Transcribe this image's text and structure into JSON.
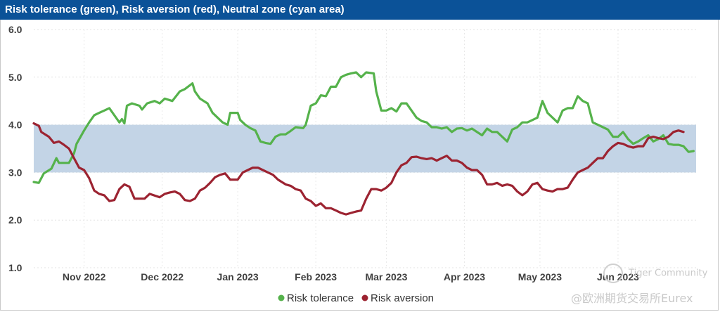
{
  "chart_data": {
    "type": "line",
    "title": "Risk tolerance (green), Risk aversion (red), Neutral zone (cyan area)",
    "ylim": [
      1.0,
      6.0
    ],
    "y_ticks": [
      "6.0",
      "5.0",
      "4.0",
      "3.0",
      "2.0",
      "1.0"
    ],
    "x_tick_labels": [
      "Nov 2022",
      "Dec 2022",
      "Jan 2023",
      "Feb 2023",
      "Mar 2023",
      "Apr 2023",
      "May 2023",
      "Jun 2023"
    ],
    "x_tick_index": [
      20,
      51,
      81,
      112,
      140,
      171,
      201,
      232
    ],
    "x_count": 264,
    "grid": true,
    "neutral_zone": {
      "name": "Neutral zone",
      "range": [
        3.0,
        4.0
      ],
      "color": "#c3d4e6"
    },
    "legend_position": "bottom-center",
    "series": [
      {
        "name": "Risk tolerance",
        "color": "#55b24b",
        "points": [
          [
            0,
            2.8
          ],
          [
            2,
            2.78
          ],
          [
            4,
            2.98
          ],
          [
            7,
            3.08
          ],
          [
            9,
            3.3
          ],
          [
            10,
            3.2
          ],
          [
            14,
            3.2
          ],
          [
            16,
            3.4
          ],
          [
            17,
            3.6
          ],
          [
            20,
            3.88
          ],
          [
            22,
            4.05
          ],
          [
            24,
            4.2
          ],
          [
            26,
            4.25
          ],
          [
            28,
            4.3
          ],
          [
            30,
            4.35
          ],
          [
            32,
            4.2
          ],
          [
            34,
            4.05
          ],
          [
            35,
            4.12
          ],
          [
            36,
            4.03
          ],
          [
            37,
            4.4
          ],
          [
            39,
            4.45
          ],
          [
            42,
            4.4
          ],
          [
            43,
            4.32
          ],
          [
            45,
            4.45
          ],
          [
            48,
            4.5
          ],
          [
            50,
            4.45
          ],
          [
            52,
            4.55
          ],
          [
            55,
            4.5
          ],
          [
            58,
            4.7
          ],
          [
            60,
            4.75
          ],
          [
            63,
            4.87
          ],
          [
            64,
            4.7
          ],
          [
            66,
            4.55
          ],
          [
            69,
            4.45
          ],
          [
            71,
            4.25
          ],
          [
            73,
            4.15
          ],
          [
            75,
            4.05
          ],
          [
            77,
            4.0
          ],
          [
            78,
            4.25
          ],
          [
            81,
            4.25
          ],
          [
            82,
            4.1
          ],
          [
            84,
            4.0
          ],
          [
            86,
            3.93
          ],
          [
            88,
            3.88
          ],
          [
            90,
            3.65
          ],
          [
            92,
            3.62
          ],
          [
            94,
            3.6
          ],
          [
            96,
            3.75
          ],
          [
            98,
            3.8
          ],
          [
            100,
            3.8
          ],
          [
            102,
            3.87
          ],
          [
            104,
            3.95
          ],
          [
            107,
            3.93
          ],
          [
            108,
            4.0
          ],
          [
            110,
            4.4
          ],
          [
            112,
            4.45
          ],
          [
            114,
            4.62
          ],
          [
            116,
            4.6
          ],
          [
            118,
            4.8
          ],
          [
            120,
            4.8
          ],
          [
            122,
            5.0
          ],
          [
            124,
            5.05
          ],
          [
            126,
            5.08
          ],
          [
            128,
            5.1
          ],
          [
            130,
            5.0
          ],
          [
            132,
            5.1
          ],
          [
            135,
            5.08
          ],
          [
            136,
            4.7
          ],
          [
            138,
            4.3
          ],
          [
            140,
            4.3
          ],
          [
            142,
            4.35
          ],
          [
            144,
            4.28
          ],
          [
            146,
            4.45
          ],
          [
            148,
            4.45
          ],
          [
            150,
            4.3
          ],
          [
            152,
            4.15
          ],
          [
            154,
            4.08
          ],
          [
            156,
            4.05
          ],
          [
            158,
            3.95
          ],
          [
            160,
            3.95
          ],
          [
            162,
            3.92
          ],
          [
            164,
            3.95
          ],
          [
            166,
            3.85
          ],
          [
            168,
            3.92
          ],
          [
            170,
            3.93
          ],
          [
            172,
            3.88
          ],
          [
            174,
            3.92
          ],
          [
            176,
            3.85
          ],
          [
            178,
            3.78
          ],
          [
            180,
            3.92
          ],
          [
            182,
            3.85
          ],
          [
            184,
            3.85
          ],
          [
            186,
            3.75
          ],
          [
            188,
            3.65
          ],
          [
            190,
            3.9
          ],
          [
            192,
            3.95
          ],
          [
            194,
            4.05
          ],
          [
            196,
            4.05
          ],
          [
            198,
            4.1
          ],
          [
            200,
            4.15
          ],
          [
            202,
            4.5
          ],
          [
            204,
            4.25
          ],
          [
            206,
            4.15
          ],
          [
            208,
            4.05
          ],
          [
            210,
            4.3
          ],
          [
            212,
            4.35
          ],
          [
            214,
            4.35
          ],
          [
            216,
            4.6
          ],
          [
            218,
            4.5
          ],
          [
            220,
            4.45
          ],
          [
            222,
            4.05
          ],
          [
            224,
            4.0
          ],
          [
            226,
            3.95
          ],
          [
            228,
            3.9
          ],
          [
            230,
            3.75
          ],
          [
            232,
            3.75
          ],
          [
            234,
            3.85
          ],
          [
            236,
            3.7
          ],
          [
            238,
            3.6
          ],
          [
            240,
            3.65
          ],
          [
            242,
            3.72
          ],
          [
            244,
            3.78
          ],
          [
            246,
            3.65
          ],
          [
            248,
            3.7
          ],
          [
            250,
            3.78
          ],
          [
            252,
            3.6
          ],
          [
            254,
            3.58
          ],
          [
            256,
            3.58
          ],
          [
            258,
            3.55
          ],
          [
            260,
            3.43
          ],
          [
            262,
            3.45
          ]
        ]
      },
      {
        "name": "Risk aversion",
        "color": "#9c2331",
        "points": [
          [
            0,
            4.03
          ],
          [
            2,
            3.98
          ],
          [
            3,
            3.85
          ],
          [
            6,
            3.75
          ],
          [
            8,
            3.62
          ],
          [
            10,
            3.65
          ],
          [
            12,
            3.58
          ],
          [
            14,
            3.5
          ],
          [
            16,
            3.3
          ],
          [
            18,
            3.1
          ],
          [
            20,
            3.05
          ],
          [
            22,
            2.88
          ],
          [
            24,
            2.62
          ],
          [
            26,
            2.55
          ],
          [
            28,
            2.52
          ],
          [
            30,
            2.4
          ],
          [
            32,
            2.42
          ],
          [
            34,
            2.65
          ],
          [
            36,
            2.75
          ],
          [
            38,
            2.7
          ],
          [
            40,
            2.45
          ],
          [
            44,
            2.45
          ],
          [
            46,
            2.55
          ],
          [
            50,
            2.48
          ],
          [
            52,
            2.55
          ],
          [
            54,
            2.58
          ],
          [
            56,
            2.6
          ],
          [
            58,
            2.55
          ],
          [
            60,
            2.42
          ],
          [
            62,
            2.4
          ],
          [
            64,
            2.45
          ],
          [
            66,
            2.62
          ],
          [
            68,
            2.68
          ],
          [
            70,
            2.78
          ],
          [
            72,
            2.9
          ],
          [
            74,
            2.95
          ],
          [
            76,
            2.98
          ],
          [
            78,
            2.85
          ],
          [
            81,
            2.85
          ],
          [
            83,
            3.0
          ],
          [
            85,
            3.05
          ],
          [
            87,
            3.1
          ],
          [
            89,
            3.1
          ],
          [
            91,
            3.05
          ],
          [
            93,
            3.0
          ],
          [
            95,
            2.95
          ],
          [
            97,
            2.85
          ],
          [
            100,
            2.75
          ],
          [
            102,
            2.72
          ],
          [
            104,
            2.65
          ],
          [
            106,
            2.62
          ],
          [
            108,
            2.45
          ],
          [
            110,
            2.4
          ],
          [
            112,
            2.3
          ],
          [
            114,
            2.35
          ],
          [
            116,
            2.25
          ],
          [
            118,
            2.25
          ],
          [
            120,
            2.2
          ],
          [
            122,
            2.15
          ],
          [
            124,
            2.12
          ],
          [
            126,
            2.15
          ],
          [
            128,
            2.18
          ],
          [
            130,
            2.2
          ],
          [
            132,
            2.45
          ],
          [
            134,
            2.65
          ],
          [
            136,
            2.65
          ],
          [
            138,
            2.62
          ],
          [
            140,
            2.68
          ],
          [
            142,
            2.78
          ],
          [
            144,
            3.0
          ],
          [
            146,
            3.15
          ],
          [
            148,
            3.2
          ],
          [
            150,
            3.32
          ],
          [
            152,
            3.33
          ],
          [
            154,
            3.3
          ],
          [
            156,
            3.28
          ],
          [
            158,
            3.3
          ],
          [
            160,
            3.25
          ],
          [
            162,
            3.3
          ],
          [
            164,
            3.35
          ],
          [
            166,
            3.25
          ],
          [
            168,
            3.25
          ],
          [
            170,
            3.2
          ],
          [
            172,
            3.1
          ],
          [
            174,
            3.05
          ],
          [
            176,
            3.05
          ],
          [
            178,
            2.95
          ],
          [
            180,
            2.75
          ],
          [
            182,
            2.75
          ],
          [
            184,
            2.78
          ],
          [
            186,
            2.72
          ],
          [
            188,
            2.75
          ],
          [
            190,
            2.72
          ],
          [
            192,
            2.6
          ],
          [
            194,
            2.52
          ],
          [
            196,
            2.6
          ],
          [
            198,
            2.75
          ],
          [
            200,
            2.78
          ],
          [
            202,
            2.65
          ],
          [
            204,
            2.62
          ],
          [
            206,
            2.6
          ],
          [
            208,
            2.65
          ],
          [
            210,
            2.65
          ],
          [
            212,
            2.68
          ],
          [
            214,
            2.85
          ],
          [
            216,
            3.0
          ],
          [
            218,
            3.05
          ],
          [
            220,
            3.1
          ],
          [
            222,
            3.2
          ],
          [
            224,
            3.3
          ],
          [
            226,
            3.3
          ],
          [
            228,
            3.45
          ],
          [
            230,
            3.55
          ],
          [
            232,
            3.62
          ],
          [
            234,
            3.6
          ],
          [
            236,
            3.55
          ],
          [
            238,
            3.52
          ],
          [
            240,
            3.55
          ],
          [
            242,
            3.55
          ],
          [
            244,
            3.72
          ],
          [
            246,
            3.75
          ],
          [
            248,
            3.72
          ],
          [
            250,
            3.7
          ],
          [
            252,
            3.75
          ],
          [
            254,
            3.85
          ],
          [
            256,
            3.88
          ],
          [
            258,
            3.85
          ]
        ]
      }
    ]
  },
  "watermarks": {
    "community": "Tiger Community",
    "source": "@欧洲期货交易所Eurex"
  }
}
